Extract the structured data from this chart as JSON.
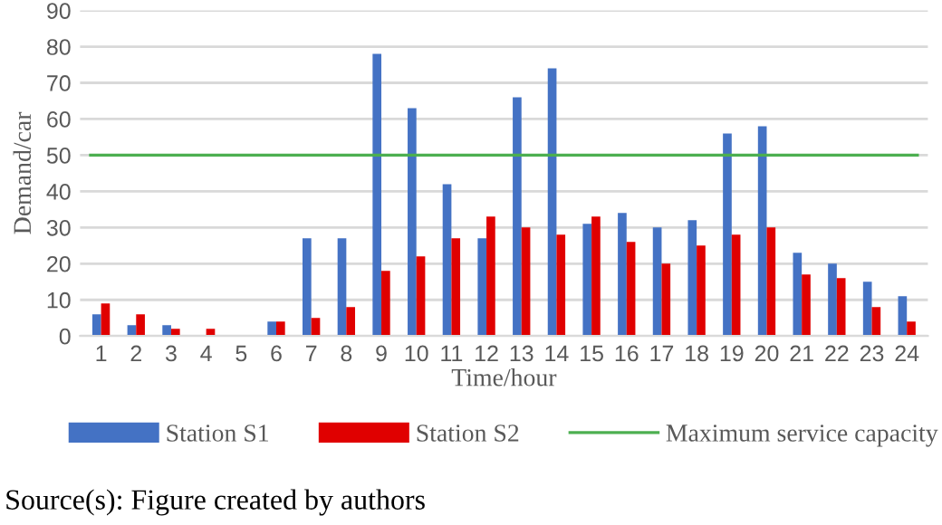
{
  "chart_data": {
    "type": "bar",
    "xlabel": "Time/hour",
    "ylabel": "Demand/car",
    "categories": [
      "1",
      "2",
      "3",
      "4",
      "5",
      "6",
      "7",
      "8",
      "9",
      "10",
      "11",
      "12",
      "13",
      "14",
      "15",
      "16",
      "17",
      "18",
      "19",
      "20",
      "21",
      "22",
      "23",
      "24"
    ],
    "series": [
      {
        "name": "Station S1",
        "color": "#4472c4",
        "values": [
          6,
          3,
          3,
          0,
          0,
          4,
          27,
          27,
          78,
          63,
          42,
          27,
          66,
          74,
          31,
          34,
          30,
          32,
          56,
          58,
          23,
          20,
          15,
          11
        ]
      },
      {
        "name": "Station S2",
        "color": "#e00000",
        "values": [
          9,
          6,
          2,
          2,
          0,
          4,
          5,
          8,
          18,
          22,
          27,
          33,
          30,
          28,
          33,
          26,
          20,
          25,
          28,
          30,
          17,
          16,
          8,
          4
        ]
      }
    ],
    "ref_lines": [
      {
        "axis": "y",
        "value": 50,
        "label": "Maximum service capacity",
        "color": "#4caf50"
      }
    ],
    "ylim": [
      0,
      90
    ],
    "yticks": [
      0,
      10,
      20,
      30,
      40,
      50,
      60,
      70,
      80,
      90
    ],
    "grid": "y",
    "legend": "bottom",
    "annotations": [
      "Source(s): Figure created by authors"
    ]
  }
}
